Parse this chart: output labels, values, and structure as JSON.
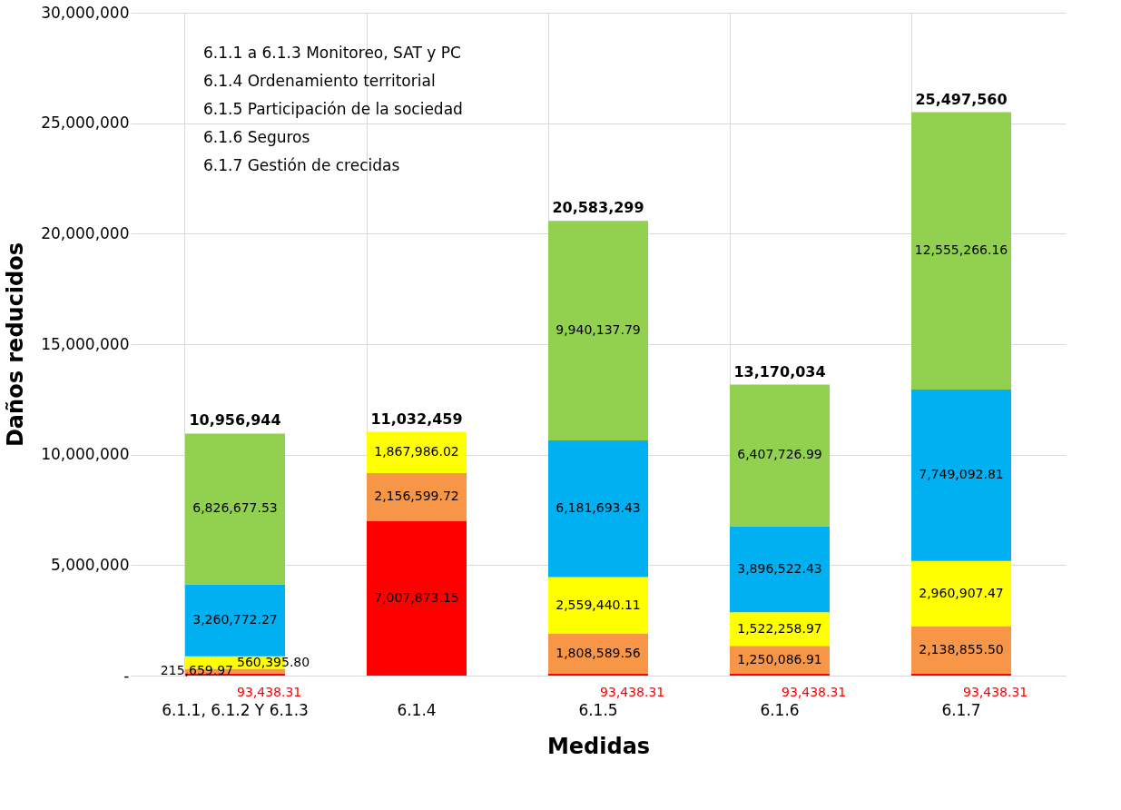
{
  "chart_data": {
    "type": "bar",
    "stacked": true,
    "xlabel": "Medidas",
    "ylabel": "Daños reducidos",
    "categories": [
      "6.1.1, 6.1.2 Y 6.1.3",
      "6.1.4",
      "6.1.5",
      "6.1.6",
      "6.1.7"
    ],
    "series": [
      {
        "color": "#ff0000",
        "values": [
          93438.31,
          7007873.15,
          93438.31,
          93438.31,
          93438.31
        ],
        "value_labels": [
          "93,438.31",
          "7,007,873.15",
          "93,438.31",
          "93,438.31",
          "93,438.31"
        ]
      },
      {
        "color": "#f79646",
        "values": [
          215659.97,
          2156599.72,
          1808589.56,
          1250086.91,
          2138855.5
        ],
        "value_labels": [
          "215,659.97",
          "2,156,599.72",
          "1,808,589.56",
          "1,250,086.91",
          "2,138,855.50"
        ]
      },
      {
        "color": "#ffff00",
        "values": [
          560395.8,
          1867986.02,
          2559440.11,
          1522258.97,
          2960907.47
        ],
        "value_labels": [
          "560,395.80",
          "1,867,986.02",
          "2,559,440.11",
          "1,522,258.97",
          "2,960,907.47"
        ]
      },
      {
        "color": "#00b0f0",
        "values": [
          3260772.27,
          null,
          6181693.43,
          3896522.43,
          7749092.81
        ],
        "value_labels": [
          "3,260,772.27",
          null,
          "6,181,693.43",
          "3,896,522.43",
          "7,749,092.81"
        ]
      },
      {
        "color": "#92d050",
        "values": [
          6826677.53,
          null,
          9940137.79,
          6407726.99,
          12555266.16
        ],
        "value_labels": [
          "6,826,677.53",
          null,
          "9,940,137.79",
          "6,407,726.99",
          "12,555,266.16"
        ]
      }
    ],
    "totals": [
      "10,956,944",
      "11,032,459",
      "20,583,299",
      "13,170,034",
      "25,497,560"
    ],
    "ylim": [
      0,
      30000000
    ],
    "yticks": [
      {
        "value": 0,
        "label": "-"
      },
      {
        "value": 5000000,
        "label": "5,000,000"
      },
      {
        "value": 10000000,
        "label": "10,000,000"
      },
      {
        "value": 15000000,
        "label": "15,000,000"
      },
      {
        "value": 20000000,
        "label": "20,000,000"
      },
      {
        "value": 25000000,
        "label": "25,000,000"
      },
      {
        "value": 30000000,
        "label": "30,000,000"
      }
    ],
    "grid": true,
    "annotations": [
      "6.1.1 a 6.1.3 Monitoreo, SAT y PC",
      "6.1.4 Ordenamiento territorial",
      "6.1.5 Participación de la sociedad",
      "6.1.6 Seguros",
      "6.1.7 Gestión de crecidas"
    ]
  }
}
